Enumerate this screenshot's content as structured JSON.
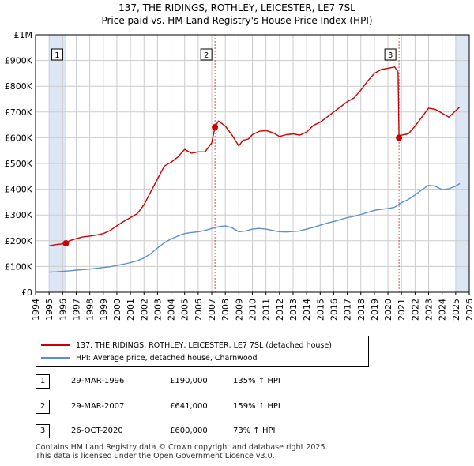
{
  "title_line1": "137, THE RIDINGS, ROTHLEY, LEICESTER, LE7 7SL",
  "title_line2": "Price paid vs. HM Land Registry's House Price Index (HPI)",
  "legend": {
    "red_label": "137, THE RIDINGS, ROTHLEY, LEICESTER, LE7 7SL (detached house)",
    "blue_label": "HPI: Average price, detached house, Charnwood"
  },
  "transactions": [
    {
      "num": "1",
      "date": "29-MAR-1996",
      "price": "£190,000",
      "hpi": "135% ↑ HPI"
    },
    {
      "num": "2",
      "date": "29-MAR-2007",
      "price": "£641,000",
      "hpi": "159% ↑ HPI"
    },
    {
      "num": "3",
      "date": "26-OCT-2020",
      "price": "£600,000",
      "hpi": "73% ↑ HPI"
    }
  ],
  "footer_line1": "Contains HM Land Registry data © Crown copyright and database right 2025.",
  "footer_line2": "This data is licensed under the Open Government Licence v3.0.",
  "colors": {
    "red": "#cc0000",
    "blue": "#5b8fd0",
    "shade": "#dde6f5",
    "grid": "#cccccc"
  },
  "chart_data": {
    "type": "line",
    "title": "137, THE RIDINGS, ROTHLEY, LEICESTER, LE7 7SL — Price paid vs. HM Land Registry's House Price Index (HPI)",
    "xlabel": "",
    "ylabel": "",
    "xlim": [
      1994,
      2026
    ],
    "ylim": [
      0,
      1000000
    ],
    "y_ticks": [
      0,
      100000,
      200000,
      300000,
      400000,
      500000,
      600000,
      700000,
      800000,
      900000,
      1000000
    ],
    "y_tick_labels": [
      "£0",
      "£100K",
      "£200K",
      "£300K",
      "£400K",
      "£500K",
      "£600K",
      "£700K",
      "£800K",
      "£900K",
      "£1M"
    ],
    "x_ticks": [
      1994,
      1995,
      1996,
      1997,
      1998,
      1999,
      2000,
      2001,
      2002,
      2003,
      2004,
      2005,
      2006,
      2007,
      2008,
      2009,
      2010,
      2011,
      2012,
      2013,
      2014,
      2015,
      2016,
      2017,
      2018,
      2019,
      2020,
      2021,
      2022,
      2023,
      2024,
      2025,
      2026
    ],
    "grid": true,
    "shaded_ranges": [
      [
        1995.0,
        1996.24
      ],
      [
        2025.0,
        2026.0
      ]
    ],
    "sale_markers": [
      {
        "label": "1",
        "x": 1996.24,
        "y": 190000
      },
      {
        "label": "2",
        "x": 2007.24,
        "y": 641000
      },
      {
        "label": "3",
        "x": 2020.82,
        "y": 600000
      }
    ],
    "series": [
      {
        "name": "137, THE RIDINGS, ROTHLEY, LEICESTER, LE7 7SL (detached house)",
        "color": "#cc0000",
        "x": [
          1995.0,
          1995.5,
          1996.0,
          1996.24,
          1996.5,
          1997.0,
          1997.5,
          1998.0,
          1998.5,
          1999.0,
          1999.5,
          2000.0,
          2000.5,
          2001.0,
          2001.5,
          2002.0,
          2002.5,
          2003.0,
          2003.5,
          2004.0,
          2004.5,
          2005.0,
          2005.5,
          2006.0,
          2006.5,
          2007.0,
          2007.24,
          2007.5,
          2008.0,
          2008.5,
          2009.0,
          2009.3,
          2009.7,
          2010.0,
          2010.5,
          2011.0,
          2011.5,
          2012.0,
          2012.5,
          2013.0,
          2013.5,
          2014.0,
          2014.5,
          2015.0,
          2015.5,
          2016.0,
          2016.5,
          2017.0,
          2017.5,
          2018.0,
          2018.5,
          2019.0,
          2019.5,
          2020.0,
          2020.5,
          2020.75,
          2020.82,
          2021.0,
          2021.5,
          2022.0,
          2022.5,
          2023.0,
          2023.5,
          2024.0,
          2024.5,
          2025.0,
          2025.3
        ],
        "values": [
          180000,
          185000,
          188000,
          190000,
          200000,
          208000,
          215000,
          218000,
          222000,
          228000,
          240000,
          258000,
          275000,
          290000,
          305000,
          340000,
          390000,
          440000,
          490000,
          505000,
          525000,
          555000,
          540000,
          545000,
          545000,
          580000,
          641000,
          665000,
          645000,
          610000,
          568000,
          590000,
          595000,
          612000,
          625000,
          628000,
          620000,
          605000,
          612000,
          615000,
          610000,
          622000,
          648000,
          660000,
          680000,
          700000,
          720000,
          740000,
          755000,
          785000,
          820000,
          850000,
          865000,
          870000,
          875000,
          855000,
          600000,
          610000,
          615000,
          645000,
          680000,
          715000,
          710000,
          695000,
          680000,
          705000,
          720000
        ]
      },
      {
        "name": "HPI: Average price, detached house, Charnwood",
        "color": "#5b8fd0",
        "x": [
          1995.0,
          1995.5,
          1996.0,
          1996.5,
          1997.0,
          1997.5,
          1998.0,
          1998.5,
          1999.0,
          1999.5,
          2000.0,
          2000.5,
          2001.0,
          2001.5,
          2002.0,
          2002.5,
          2003.0,
          2003.5,
          2004.0,
          2004.5,
          2005.0,
          2005.5,
          2006.0,
          2006.5,
          2007.0,
          2007.5,
          2008.0,
          2008.5,
          2009.0,
          2009.5,
          2010.0,
          2010.5,
          2011.0,
          2011.5,
          2012.0,
          2012.5,
          2013.0,
          2013.5,
          2014.0,
          2014.5,
          2015.0,
          2015.5,
          2016.0,
          2016.5,
          2017.0,
          2017.5,
          2018.0,
          2018.5,
          2019.0,
          2019.5,
          2020.0,
          2020.5,
          2021.0,
          2021.5,
          2022.0,
          2022.5,
          2023.0,
          2023.5,
          2024.0,
          2024.5,
          2025.0,
          2025.3
        ],
        "values": [
          78000,
          79000,
          81000,
          83000,
          86000,
          88000,
          90000,
          93000,
          96000,
          99000,
          104000,
          109000,
          115000,
          122000,
          133000,
          150000,
          172000,
          192000,
          207000,
          218000,
          228000,
          232000,
          235000,
          240000,
          248000,
          255000,
          258000,
          250000,
          235000,
          238000,
          245000,
          248000,
          245000,
          240000,
          235000,
          234000,
          236000,
          238000,
          245000,
          252000,
          260000,
          268000,
          275000,
          282000,
          290000,
          295000,
          302000,
          310000,
          318000,
          322000,
          325000,
          330000,
          348000,
          360000,
          378000,
          398000,
          415000,
          412000,
          398000,
          402000,
          412000,
          422000
        ]
      }
    ]
  }
}
